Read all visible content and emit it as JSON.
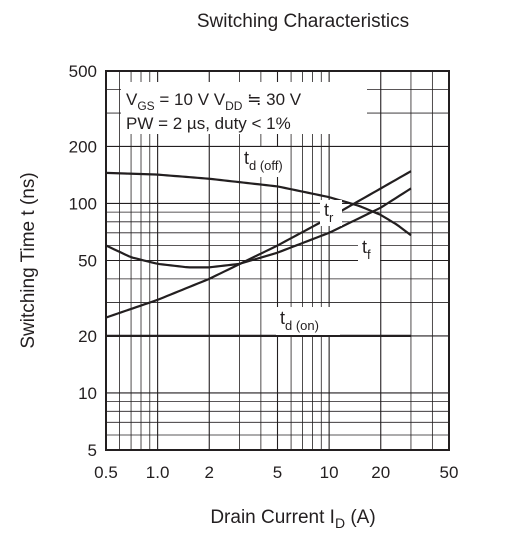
{
  "chart_data": {
    "type": "line",
    "title": "Switching Characteristics",
    "xlabel_main": "Drain Current",
    "xlabel_sym": "I",
    "xlabel_sub": "D",
    "xlabel_unit": "(A)",
    "ylabel": "Switching Time  t  (ns)",
    "x_scale": "log",
    "y_scale": "log",
    "xlim": [
      0.5,
      50
    ],
    "ylim": [
      5,
      500
    ],
    "grid": true,
    "x_ticks": [
      {
        "v": 0.5,
        "label": "0.5"
      },
      {
        "v": 1,
        "label": "1.0"
      },
      {
        "v": 2,
        "label": "2"
      },
      {
        "v": 5,
        "label": "5"
      },
      {
        "v": 10,
        "label": "10"
      },
      {
        "v": 20,
        "label": "20"
      },
      {
        "v": 50,
        "label": "50"
      }
    ],
    "y_ticks": [
      {
        "v": 5,
        "label": "5"
      },
      {
        "v": 10,
        "label": "10"
      },
      {
        "v": 20,
        "label": "20"
      },
      {
        "v": 50,
        "label": "50"
      },
      {
        "v": 100,
        "label": "100"
      },
      {
        "v": 200,
        "label": "200"
      },
      {
        "v": 500,
        "label": "500"
      }
    ],
    "conditions": {
      "line1": {
        "a": "V",
        "a_sub": "GS",
        "b": " = 10 V  V",
        "b_sub": "DD",
        "c": " ≒ 30 V"
      },
      "line2": "PW = 2 µs, duty < 1%"
    },
    "series": [
      {
        "sym": "t",
        "sub": "d (off)",
        "x": [
          0.5,
          1,
          2,
          5,
          10,
          15,
          20,
          25,
          30
        ],
        "y": [
          145,
          142,
          135,
          123,
          108,
          97,
          87,
          77,
          68
        ]
      },
      {
        "sym": "t",
        "sub": "r",
        "x": [
          0.5,
          1,
          2,
          5,
          10,
          20,
          30
        ],
        "y": [
          25,
          31,
          40,
          60,
          84,
          120,
          148
        ]
      },
      {
        "sym": "t",
        "sub": "f",
        "x": [
          0.5,
          0.7,
          1,
          1.5,
          2,
          3,
          5,
          10,
          20,
          30
        ],
        "y": [
          60,
          52,
          48,
          46,
          46,
          48,
          55,
          70,
          95,
          120
        ]
      },
      {
        "sym": "t",
        "sub": "d (on)",
        "x": [
          0.5,
          30
        ],
        "y": [
          20,
          20
        ]
      }
    ]
  }
}
